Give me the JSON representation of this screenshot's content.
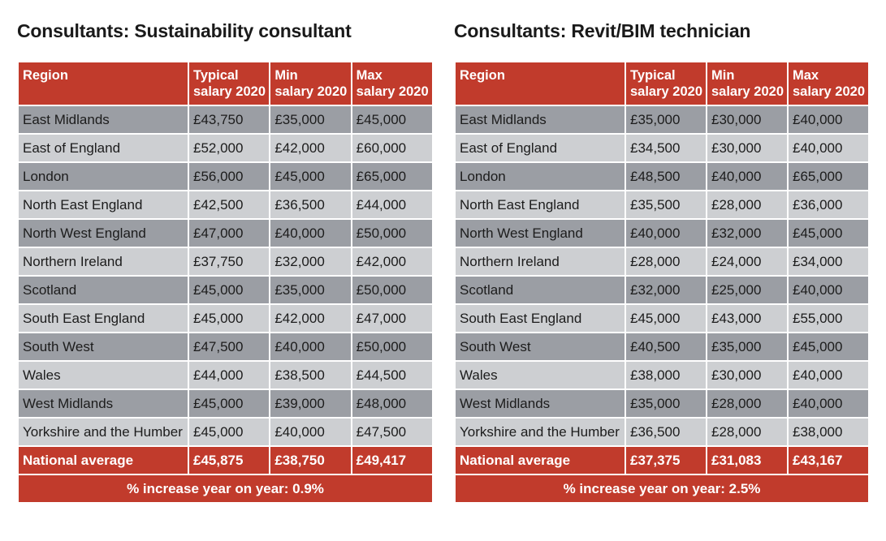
{
  "header_labels": {
    "region": "Region",
    "typical_l1": "Typical",
    "typical_l2": "salary 2020",
    "min_l1": "Min",
    "min_l2": "salary 2020",
    "max_l1": "Max",
    "max_l2": "salary 2020"
  },
  "panels": [
    {
      "title": "Consultants: Sustainability consultant",
      "rows": [
        [
          "East Midlands",
          "£43,750",
          "£35,000",
          "£45,000"
        ],
        [
          "East of England",
          "£52,000",
          "£42,000",
          "£60,000"
        ],
        [
          "London",
          "£56,000",
          "£45,000",
          "£65,000"
        ],
        [
          "North East England",
          "£42,500",
          "£36,500",
          "£44,000"
        ],
        [
          "North West England",
          "£47,000",
          "£40,000",
          "£50,000"
        ],
        [
          "Northern Ireland",
          "£37,750",
          "£32,000",
          "£42,000"
        ],
        [
          "Scotland",
          "£45,000",
          "£35,000",
          "£50,000"
        ],
        [
          "South East England",
          "£45,000",
          "£42,000",
          "£47,000"
        ],
        [
          "South West",
          "£47,500",
          "£40,000",
          "£50,000"
        ],
        [
          "Wales",
          "£44,000",
          "£38,500",
          "£44,500"
        ],
        [
          "West Midlands",
          "£45,000",
          "£39,000",
          "£48,000"
        ],
        [
          "Yorkshire and the Humber",
          "£45,000",
          "£40,000",
          "£47,500"
        ]
      ],
      "average": [
        "National average",
        "£45,875",
        "£38,750",
        "£49,417"
      ],
      "footer": "% increase year on year: 0.9%"
    },
    {
      "title": "Consultants: Revit/BIM technician",
      "rows": [
        [
          "East Midlands",
          "£35,000",
          "£30,000",
          "£40,000"
        ],
        [
          "East of England",
          "£34,500",
          "£30,000",
          "£40,000"
        ],
        [
          "London",
          "£48,500",
          "£40,000",
          "£65,000"
        ],
        [
          "North East England",
          "£35,500",
          "£28,000",
          "£36,000"
        ],
        [
          "North West England",
          "£40,000",
          "£32,000",
          "£45,000"
        ],
        [
          "Northern Ireland",
          "£28,000",
          "£24,000",
          "£34,000"
        ],
        [
          "Scotland",
          "£32,000",
          "£25,000",
          "£40,000"
        ],
        [
          "South East England",
          "£45,000",
          "£43,000",
          "£55,000"
        ],
        [
          "South West",
          "£40,500",
          "£35,000",
          "£45,000"
        ],
        [
          "Wales",
          "£38,000",
          "£30,000",
          "£40,000"
        ],
        [
          "West Midlands",
          "£35,000",
          "£28,000",
          "£40,000"
        ],
        [
          "Yorkshire and the Humber",
          "£36,500",
          "£28,000",
          "£38,000"
        ]
      ],
      "average": [
        "National average",
        "£37,375",
        "£31,083",
        "£43,167"
      ],
      "footer": "% increase year on year: 2.5%"
    }
  ],
  "colors": {
    "header_red": "#c13b2c",
    "row_dark": "#9b9ea4",
    "row_light": "#cdcfd2"
  }
}
